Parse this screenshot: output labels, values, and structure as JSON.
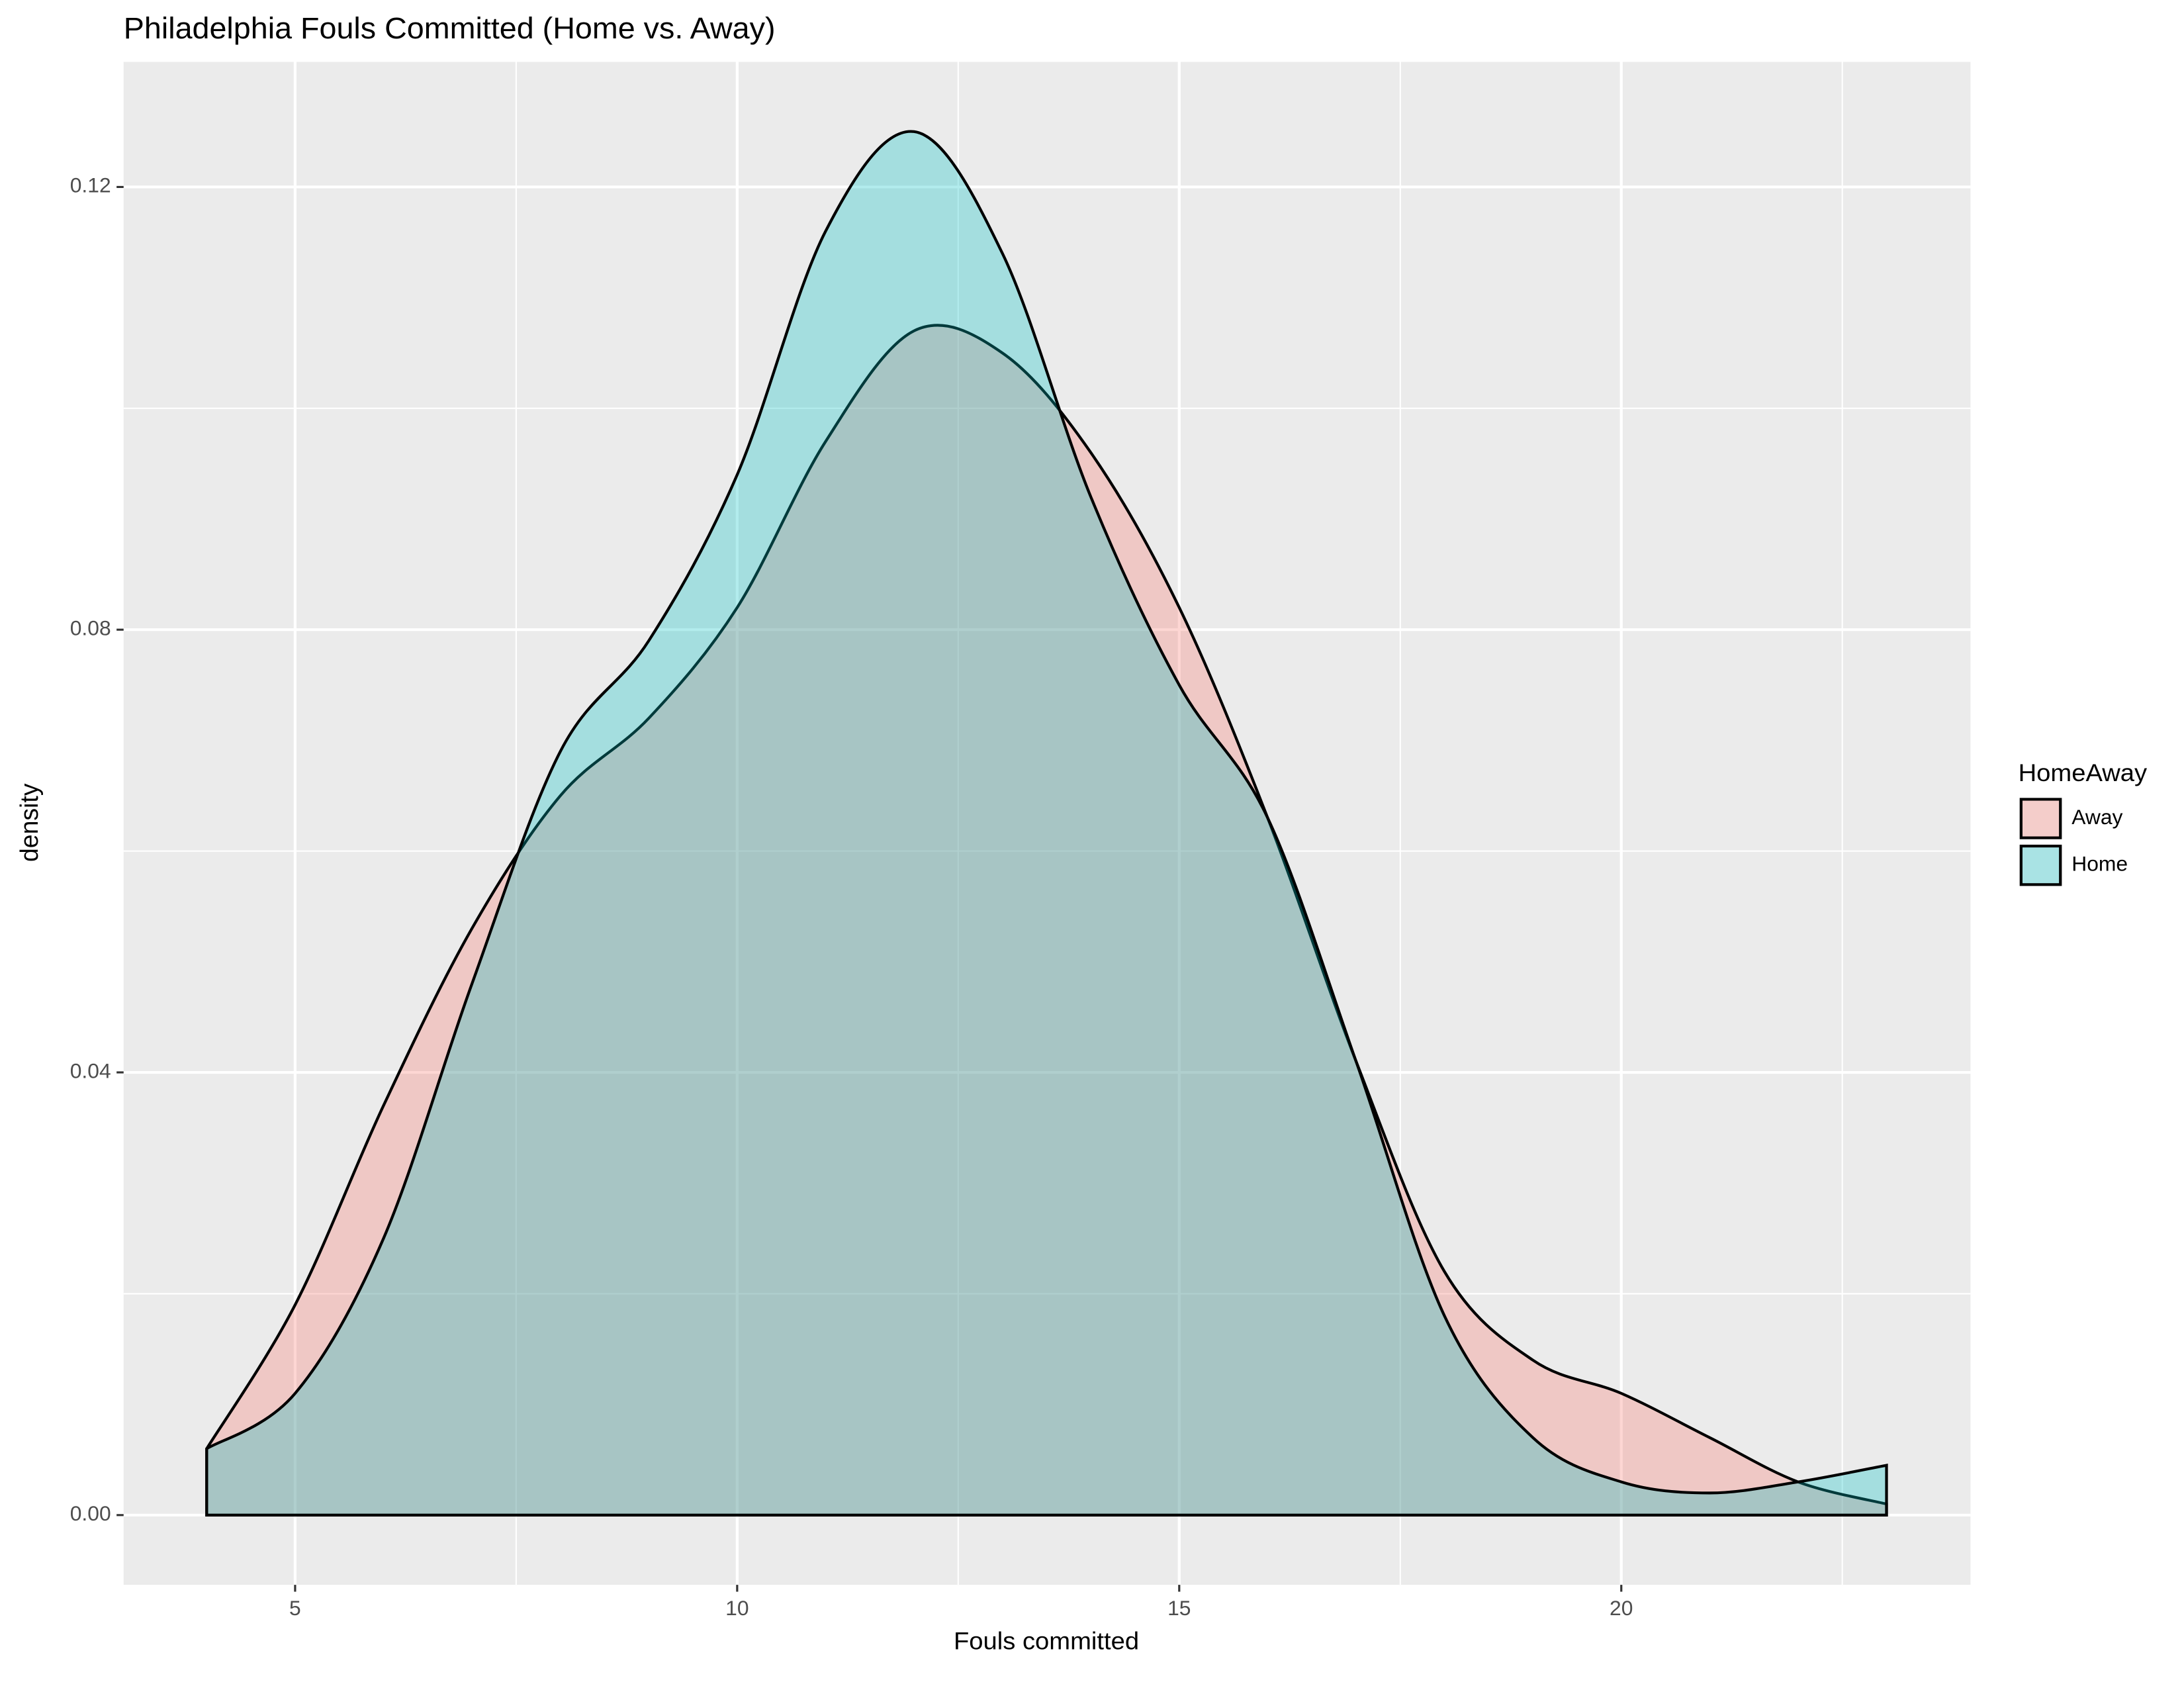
{
  "chart_data": {
    "type": "density",
    "title": "Philadelphia Fouls Committed (Home vs. Away)",
    "x_label": "Fouls committed",
    "y_label": "density",
    "legend_title": "HomeAway",
    "legend_position": "right",
    "x": [
      4,
      5,
      6,
      7,
      8,
      9,
      10,
      11,
      12,
      13,
      14,
      15,
      16,
      17,
      18,
      19,
      20,
      21,
      22,
      23
    ],
    "series": [
      {
        "name": "Away",
        "color": "#F8766D",
        "values": [
          0.006,
          0.019,
          0.037,
          0.053,
          0.065,
          0.072,
          0.082,
          0.097,
          0.107,
          0.105,
          0.096,
          0.082,
          0.063,
          0.041,
          0.022,
          0.014,
          0.011,
          0.007,
          0.003,
          0.001
        ]
      },
      {
        "name": "Home",
        "color": "#00BFC4",
        "values": [
          0.006,
          0.011,
          0.025,
          0.048,
          0.069,
          0.079,
          0.094,
          0.116,
          0.125,
          0.114,
          0.092,
          0.075,
          0.063,
          0.041,
          0.018,
          0.007,
          0.003,
          0.002,
          0.003,
          0.0045
        ]
      }
    ],
    "xlim": [
      3.06,
      23.95
    ],
    "ylim": [
      -0.0063,
      0.1313
    ],
    "xticks": [
      5,
      10,
      15,
      20
    ],
    "yticks": [
      {
        "value": 0,
        "label": "0.00"
      },
      0.04,
      0.08,
      0.12
    ],
    "grid": true
  }
}
